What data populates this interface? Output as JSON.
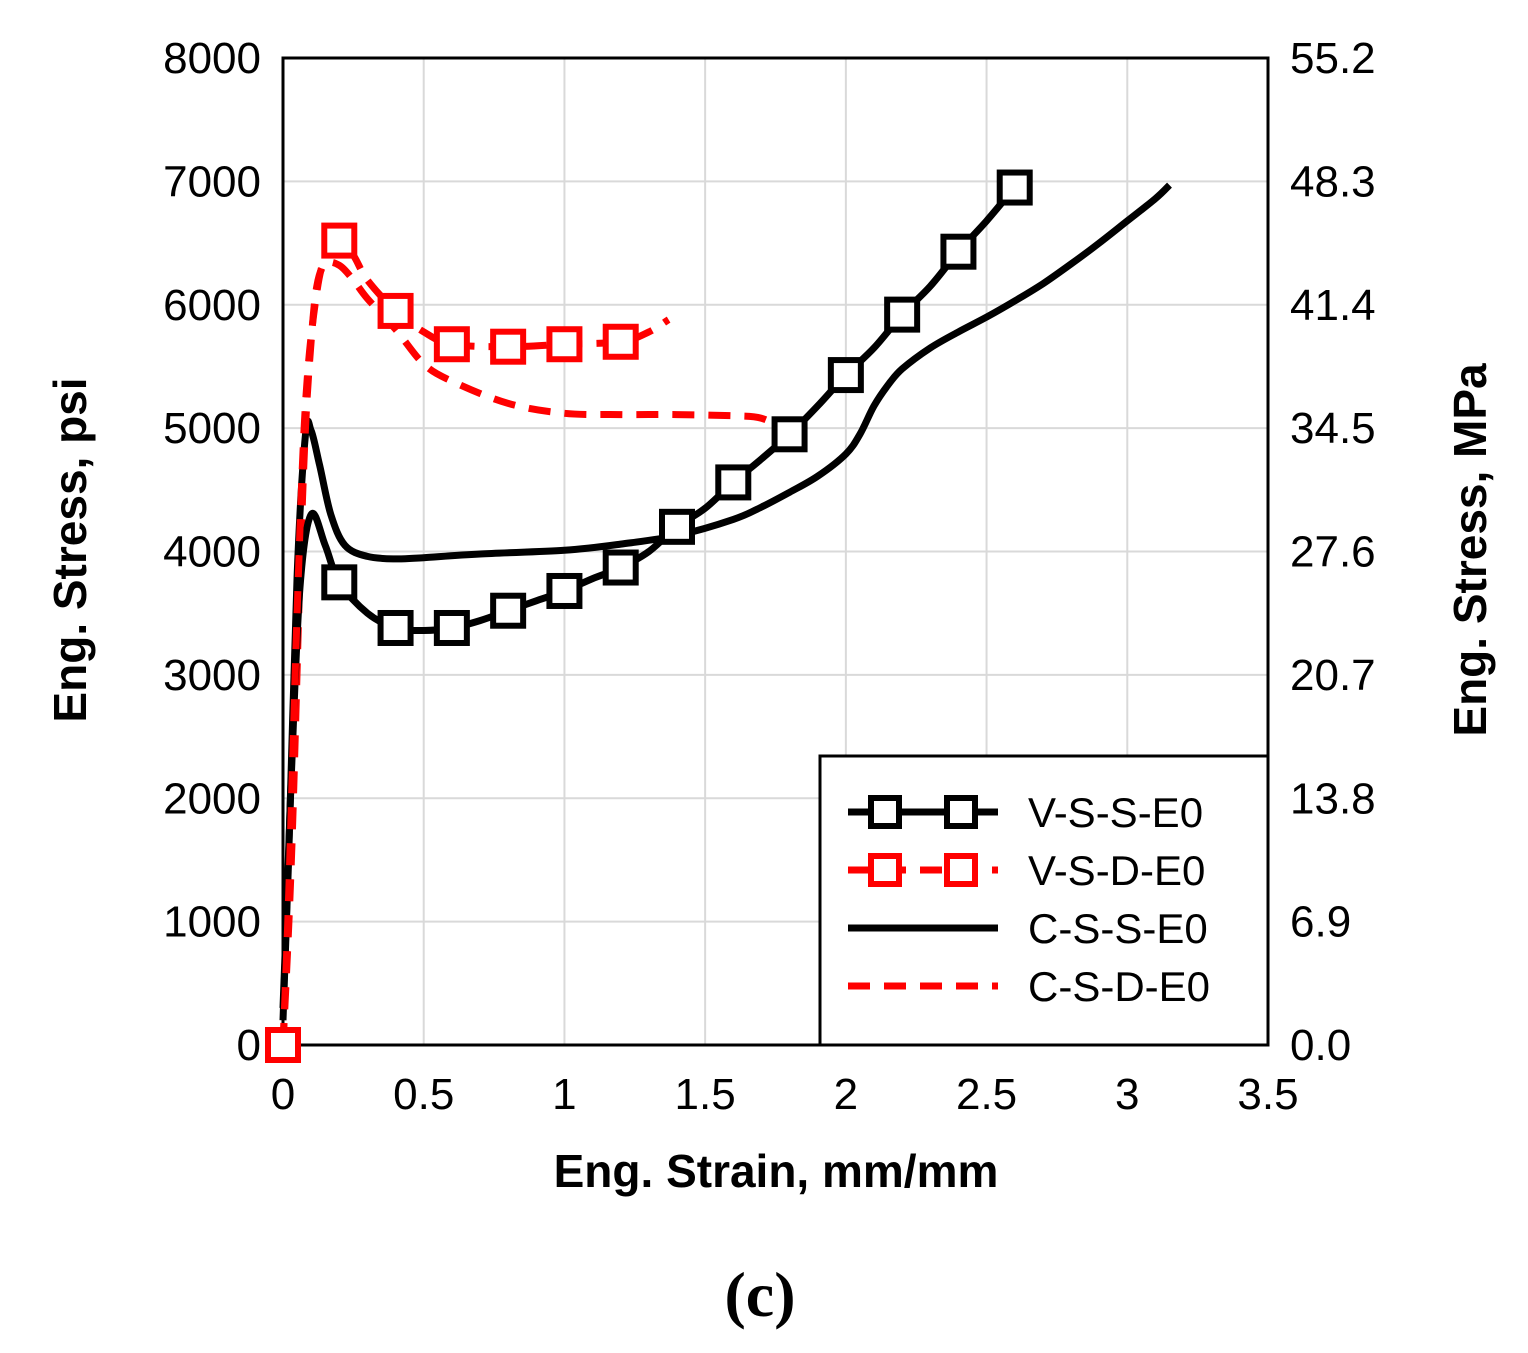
{
  "chart_data": {
    "type": "line",
    "xlabel": "Eng. Strain, mm/mm",
    "ylabel": "Eng. Stress, psi",
    "y2label": "Eng. Stress, MPa",
    "xlim": [
      0,
      3.5
    ],
    "ylim": [
      0,
      8000
    ],
    "xticks": [
      0,
      0.5,
      1,
      1.5,
      2,
      2.5,
      3,
      3.5
    ],
    "xtick_labels": [
      "0",
      "0.5",
      "1",
      "1.5",
      "2",
      "2.5",
      "3",
      "3.5"
    ],
    "yticks": [
      0,
      1000,
      2000,
      3000,
      4000,
      5000,
      6000,
      7000,
      8000
    ],
    "ytick_labels": [
      "0",
      "1000",
      "2000",
      "3000",
      "4000",
      "5000",
      "6000",
      "7000",
      "8000"
    ],
    "y2tick_labels": [
      "0.0",
      "6.9",
      "13.8",
      "20.7",
      "27.6",
      "34.5",
      "41.4",
      "48.3",
      "55.2"
    ],
    "grid": true,
    "legend_position": "bottom-right",
    "caption": "(c)",
    "series": [
      {
        "name": "V-S-S-E0",
        "color": "#000000",
        "style": "solid-square-markers",
        "x": [
          0,
          0.01,
          0.03,
          0.06,
          0.1,
          0.15,
          0.2,
          0.3,
          0.4,
          0.5,
          0.6,
          0.7,
          0.8,
          0.9,
          1.0,
          1.1,
          1.2,
          1.3,
          1.4,
          1.5,
          1.6,
          1.7,
          1.8,
          1.9,
          2.0,
          2.1,
          2.2,
          2.3,
          2.4,
          2.5,
          2.6,
          2.62
        ],
        "y": [
          300,
          900,
          2200,
          3700,
          4300,
          4050,
          3750,
          3500,
          3380,
          3360,
          3380,
          3440,
          3520,
          3600,
          3680,
          3780,
          3870,
          4000,
          4200,
          4350,
          4560,
          4750,
          4950,
          5180,
          5430,
          5650,
          5920,
          6150,
          6430,
          6680,
          6950,
          6990
        ],
        "markers_x": [
          0.2,
          0.4,
          0.6,
          0.8,
          1.0,
          1.2,
          1.4,
          1.6,
          1.8,
          2.0,
          2.2,
          2.4,
          2.6
        ],
        "markers_y": [
          3750,
          3380,
          3380,
          3520,
          3680,
          3870,
          4200,
          4560,
          4950,
          5430,
          5920,
          6430,
          6950
        ]
      },
      {
        "name": "V-S-D-E0",
        "color": "#ff0000",
        "style": "dashed-square-markers",
        "x": [
          0,
          0.02,
          0.05,
          0.08,
          0.12,
          0.16,
          0.2,
          0.25,
          0.3,
          0.4,
          0.5,
          0.6,
          0.8,
          1.0,
          1.2,
          1.3,
          1.37
        ],
        "y": [
          0,
          1200,
          3500,
          5200,
          6100,
          6450,
          6520,
          6400,
          6200,
          5950,
          5780,
          5680,
          5660,
          5680,
          5700,
          5780,
          5880
        ],
        "markers_x": [
          0,
          0.2,
          0.4,
          0.6,
          0.8,
          1.0,
          1.2
        ],
        "markers_y": [
          0,
          6520,
          5950,
          5680,
          5660,
          5680,
          5700
        ]
      },
      {
        "name": "C-S-S-E0",
        "color": "#000000",
        "style": "solid",
        "x": [
          0,
          0.02,
          0.05,
          0.08,
          0.1,
          0.13,
          0.17,
          0.22,
          0.3,
          0.4,
          0.5,
          0.7,
          1.0,
          1.2,
          1.4,
          1.6,
          1.7,
          1.8,
          1.9,
          2.0,
          2.05,
          2.1,
          2.15,
          2.2,
          2.3,
          2.4,
          2.5,
          2.6,
          2.7,
          2.8,
          2.9,
          3.0,
          3.1,
          3.15
        ],
        "y": [
          200,
          1500,
          3800,
          4950,
          4980,
          4700,
          4300,
          4050,
          3960,
          3940,
          3950,
          3980,
          4010,
          4060,
          4130,
          4260,
          4360,
          4480,
          4610,
          4790,
          4950,
          5180,
          5350,
          5480,
          5650,
          5780,
          5900,
          6030,
          6170,
          6330,
          6500,
          6680,
          6860,
          6970
        ]
      },
      {
        "name": "C-S-D-E0",
        "color": "#ff0000",
        "style": "dashed",
        "x": [
          0,
          0.03,
          0.06,
          0.08,
          0.1,
          0.12,
          0.15,
          0.2,
          0.25,
          0.3,
          0.4,
          0.5,
          0.6,
          0.8,
          1.0,
          1.2,
          1.4,
          1.6,
          1.7,
          1.78
        ],
        "y": [
          0,
          1500,
          3800,
          5000,
          5700,
          6150,
          6330,
          6320,
          6200,
          6050,
          5800,
          5520,
          5380,
          5200,
          5120,
          5110,
          5110,
          5100,
          5080,
          4990
        ]
      }
    ]
  }
}
